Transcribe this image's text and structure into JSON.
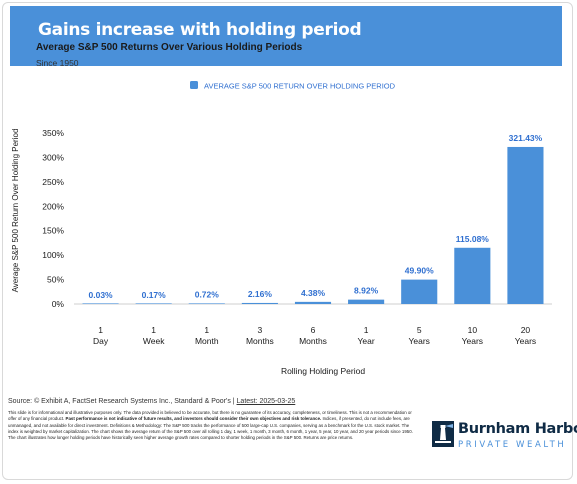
{
  "header": {
    "title": "Gains increase with holding period",
    "subtitle": "Average S&P 500 Returns Over Various Holding Periods",
    "since": "Since 1950"
  },
  "chart_data": {
    "type": "bar",
    "categories": [
      [
        "1",
        "Day"
      ],
      [
        "1",
        "Week"
      ],
      [
        "1",
        "Month"
      ],
      [
        "3",
        "Months"
      ],
      [
        "6",
        "Months"
      ],
      [
        "1",
        "Year"
      ],
      [
        "5",
        "Years"
      ],
      [
        "10",
        "Years"
      ],
      [
        "20",
        "Years"
      ]
    ],
    "series": [
      {
        "name": "AVERAGE S&P 500 RETURN OVER HOLDING PERIOD",
        "values": [
          0.03,
          0.17,
          0.72,
          2.16,
          4.38,
          8.92,
          49.9,
          115.08,
          321.43
        ],
        "labels": [
          "0.03%",
          "0.17%",
          "0.72%",
          "2.16%",
          "4.38%",
          "8.92%",
          "49.90%",
          "115.08%",
          "321.43%"
        ]
      }
    ],
    "xlabel": "Rolling Holding Period",
    "ylabel": "Average S&P 500 Return Over Holding Period",
    "ylim": [
      0,
      350
    ],
    "yticks": [
      0,
      50,
      100,
      150,
      200,
      250,
      300,
      350
    ],
    "ytick_labels": [
      "0%",
      "50%",
      "100%",
      "150%",
      "200%",
      "250%",
      "300%",
      "350%"
    ],
    "grid": false,
    "legend": "top-center",
    "bar_color": "#4a90d9",
    "label_color": "#2f6fd0"
  },
  "footer": {
    "source_prefix": "Source: © Exhibit A, FactSet Research Systems Inc., Standard & Poor's | ",
    "source_link": "Latest: 2025-03-25",
    "disclaimer_1": "This slide is for informational and illustrative purposes only. The data provided is believed to be accurate, but there is no guarantee of its accuracy, completeness, or timeliness. This is not a recommendation or offer of any financial product. ",
    "disclaimer_bold": "Past performance is not indicative of future results, and investors should consider their own objectives and risk tolerance.",
    "disclaimer_2": " Indices, if presented, do not include fees, are unmanaged, and not available for direct investment. Definitions & Methodology: The S&P 500 tracks the performance of 500 large-cap U.S. companies, serving as a benchmark for the U.S. stock market. The index is weighted by market capitalization. The chart shows the average return of the S&P 500 over all rolling 1 day, 1 week, 1 month, 3 month, 6 month, 1 year, 5 year, 10 year, and 20 year periods since 1950. The chart illustrates how longer holding periods have historically seen higher average growth rates compared to shorter holding periods in the S&P 500. Returns are price returns."
  },
  "logo": {
    "name": "Burnham Harbor",
    "sub": "PRIVATE WEALTH",
    "icon": "lighthouse-icon"
  },
  "colors": {
    "title_bar": "#4a90d9",
    "brand_dark": "#0f2b45"
  }
}
